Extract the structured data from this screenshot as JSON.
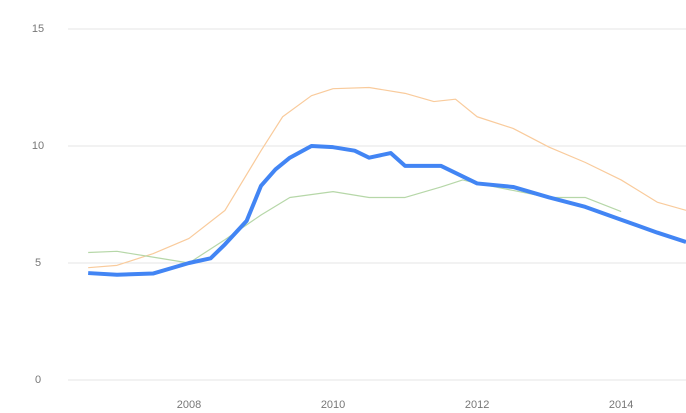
{
  "chart_data": {
    "type": "line",
    "xlim": [
      2006.32,
      2014.9
    ],
    "xticks": [
      2008,
      2010,
      2012,
      2014
    ],
    "ylim": [
      0,
      15
    ],
    "yticks": [
      0,
      5,
      10,
      15
    ],
    "grid": true,
    "series": [
      {
        "color": "#f9cb9c",
        "width": 1.2,
        "x": [
          2006.6,
          2007.0,
          2007.5,
          2008.0,
          2008.5,
          2009.0,
          2009.3,
          2009.7,
          2010.0,
          2010.5,
          2011.0,
          2011.4,
          2011.7,
          2012.0,
          2012.5,
          2013.0,
          2013.5,
          2014.0,
          2014.5,
          2014.9
        ],
        "values": [
          4.8,
          4.9,
          5.4,
          6.05,
          7.25,
          9.8,
          11.25,
          12.15,
          12.45,
          12.5,
          12.25,
          11.9,
          12.0,
          11.25,
          10.75,
          9.95,
          9.3,
          8.55,
          7.6,
          7.25
        ]
      },
      {
        "color": "#b6d7a8",
        "width": 1.2,
        "x": [
          2006.6,
          2007.0,
          2007.5,
          2008.0,
          2008.5,
          2009.0,
          2009.4,
          2010.0,
          2010.5,
          2011.0,
          2011.5,
          2011.8,
          2012.0,
          2012.5,
          2013.0,
          2013.5,
          2014.0
        ],
        "values": [
          5.45,
          5.5,
          5.25,
          5.0,
          6.0,
          7.05,
          7.8,
          8.05,
          7.8,
          7.8,
          8.25,
          8.55,
          8.4,
          8.1,
          7.8,
          7.8,
          7.2
        ]
      },
      {
        "color": "#4285f4",
        "width": 4,
        "x": [
          2006.6,
          2007.0,
          2007.5,
          2008.0,
          2008.3,
          2008.5,
          2008.8,
          2009.0,
          2009.2,
          2009.4,
          2009.7,
          2010.0,
          2010.3,
          2010.5,
          2010.8,
          2011.0,
          2011.5,
          2012.0,
          2012.5,
          2013.0,
          2013.5,
          2014.0,
          2014.5,
          2014.9
        ],
        "values": [
          4.57,
          4.5,
          4.55,
          5.0,
          5.2,
          5.8,
          6.8,
          8.3,
          9.0,
          9.5,
          10.0,
          9.95,
          9.8,
          9.5,
          9.7,
          9.15,
          9.15,
          8.4,
          8.25,
          7.8,
          7.4,
          6.85,
          6.3,
          5.9
        ]
      }
    ]
  }
}
